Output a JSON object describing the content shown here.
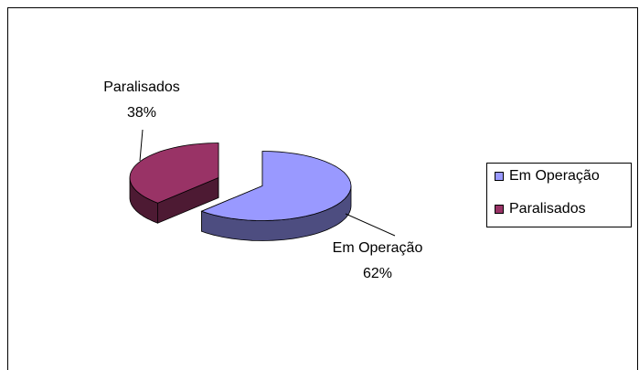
{
  "chart_data": {
    "type": "pie",
    "categories": [
      "Em Operação",
      "Paralisados"
    ],
    "values": [
      62,
      38
    ],
    "value_labels": [
      "62%",
      "38%"
    ],
    "colors": [
      "#9999ff",
      "#993366"
    ],
    "legend": "right"
  }
}
